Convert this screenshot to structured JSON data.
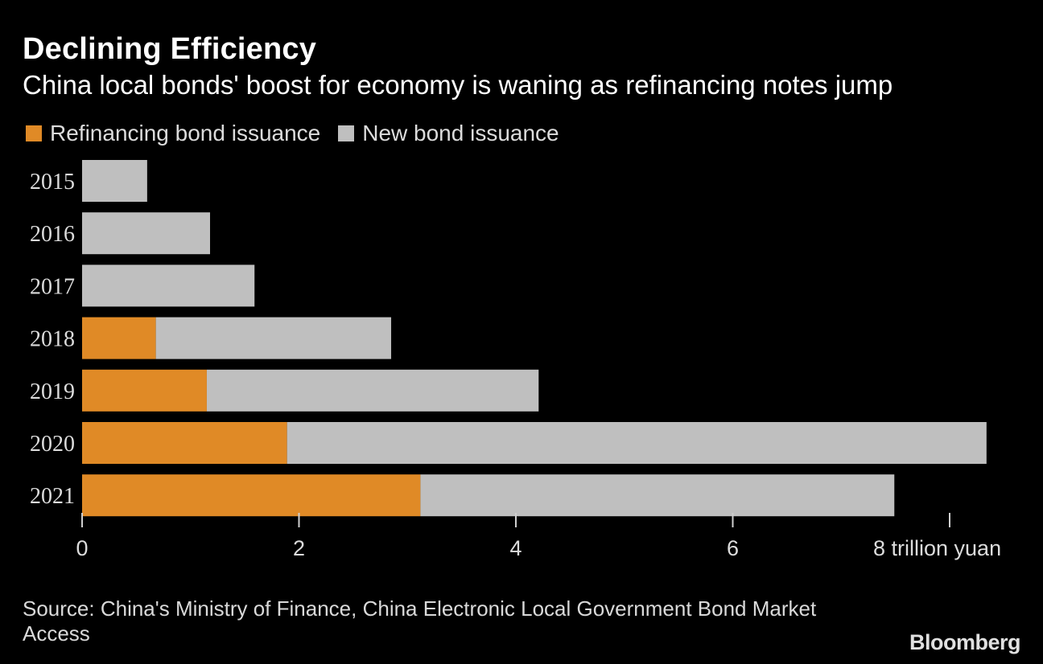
{
  "title": "Declining Efficiency",
  "subtitle": "China local bonds' boost for economy is waning as refinancing notes jump",
  "legend": [
    {
      "label": "Refinancing bond issuance",
      "color": "#e08a26"
    },
    {
      "label": "New bond issuance",
      "color": "#bfbfbf"
    }
  ],
  "source": "Source: China's Ministry of Finance, China Electronic Local Government Bond Market Access",
  "brand": "Bloomberg",
  "chart_data": {
    "type": "bar",
    "orientation": "horizontal",
    "stacked": true,
    "categories": [
      "2015",
      "2016",
      "2017",
      "2018",
      "2019",
      "2020",
      "2021"
    ],
    "series": [
      {
        "name": "Refinancing bond issuance",
        "color": "#e08a26",
        "values": [
          0,
          0,
          0,
          0.68,
          1.15,
          1.89,
          3.12
        ]
      },
      {
        "name": "New bond issuance",
        "color": "#bfbfbf",
        "values": [
          0.6,
          1.18,
          1.59,
          2.17,
          3.06,
          6.45,
          4.37
        ]
      }
    ],
    "xlim": [
      0,
      8
    ],
    "ticks": [
      "0",
      "2",
      "4",
      "6",
      "8 trillion yuan"
    ],
    "tick_values": [
      0,
      2,
      4,
      6,
      8
    ],
    "grid": false,
    "legend_position": "top-left"
  }
}
